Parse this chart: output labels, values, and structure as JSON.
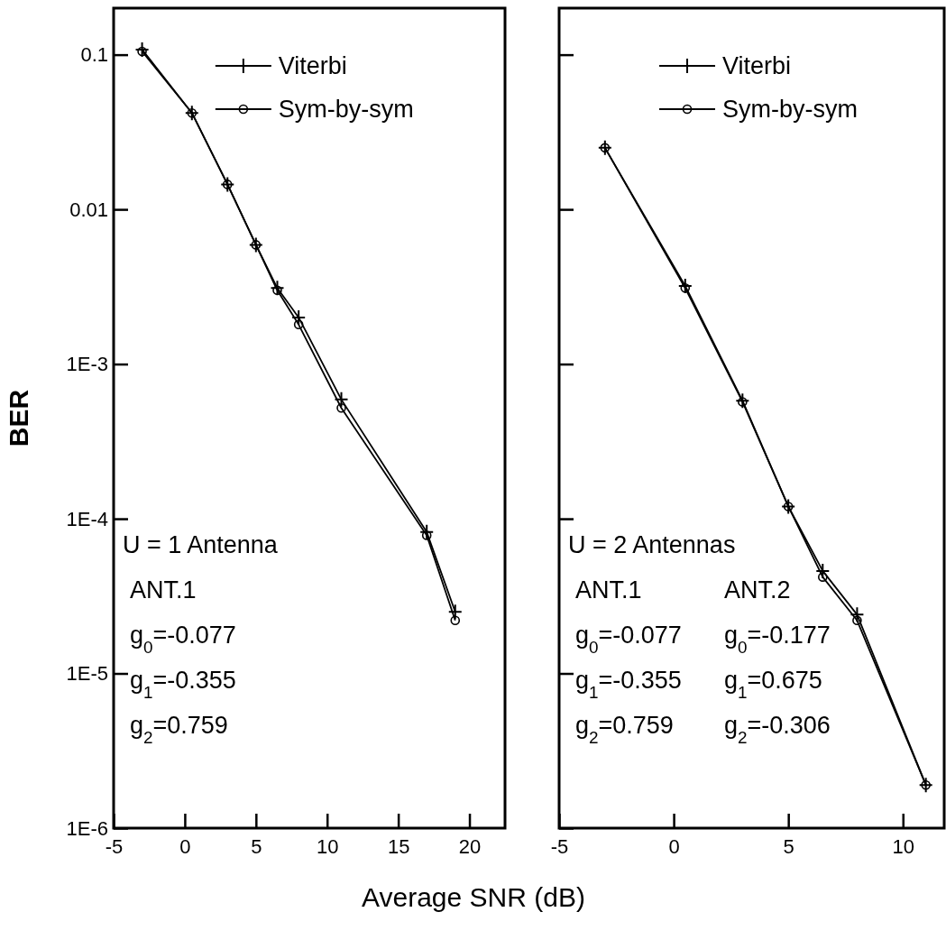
{
  "chart_data": [
    {
      "type": "line",
      "ylabel": "BER",
      "xlabel": "Average SNR (dB)",
      "log": "y",
      "legend": "top right",
      "grid": false,
      "xlim": [
        -5,
        22.5
      ],
      "xticks": [
        -5,
        0,
        5,
        10,
        15,
        20
      ],
      "ylim": [
        1e-06,
        0.2
      ],
      "yticks": [
        {
          "value": 0.1,
          "label": "0.1"
        },
        {
          "value": 0.01,
          "label": "0.01"
        },
        {
          "value": 0.001,
          "label": "1E-3"
        },
        {
          "value": 0.0001,
          "label": "1E-4"
        },
        {
          "value": 1e-05,
          "label": "1E-5"
        },
        {
          "value": 1e-06,
          "label": "1E-6"
        }
      ],
      "x": [
        -3,
        0.5,
        3,
        5,
        6.5,
        8,
        11,
        17,
        19
      ],
      "series": [
        {
          "name": "Viterbi",
          "color": "#000000",
          "marker": "cross",
          "values": [
            0.108,
            0.042,
            0.0145,
            0.0059,
            0.0031,
            0.002,
            0.00059,
            8.2e-05,
            2.5e-05
          ]
        },
        {
          "name": "Sym-by-sym",
          "color": "#000000",
          "marker": "circle",
          "values": [
            0.105,
            0.042,
            0.0145,
            0.0059,
            0.003,
            0.0018,
            0.00052,
            7.8e-05,
            2.2e-05
          ]
        }
      ],
      "annotations": [
        "U = 1 Antenna",
        "ANT.1",
        "g$_{0}$=-0.077",
        "g$_{1}$=-0.355",
        "g$_{2}$=0.759"
      ]
    },
    {
      "type": "line",
      "log": "y",
      "legend": "top right",
      "grid": false,
      "tick_labels": "x",
      "xlim": [
        -5,
        11.8
      ],
      "xticks": [
        -5,
        0,
        5,
        10
      ],
      "ylim": [
        1e-06,
        0.2
      ],
      "yticks": [
        {
          "value": 0.1,
          "label": null
        },
        {
          "value": 0.01,
          "label": null
        },
        {
          "value": 0.001,
          "label": null
        },
        {
          "value": 0.0001,
          "label": null
        },
        {
          "value": 1e-05,
          "label": null
        },
        {
          "value": 1e-06,
          "label": null
        }
      ],
      "x": [
        -3,
        0.5,
        3,
        5,
        6.5,
        8,
        11
      ],
      "series": [
        {
          "name": "Viterbi",
          "color": "#000000",
          "marker": "cross",
          "values": [
            0.025,
            0.0032,
            0.00058,
            0.00012,
            4.6e-05,
            2.4e-05,
            1.9e-06
          ]
        },
        {
          "name": "Sym-by-sym",
          "color": "#000000",
          "marker": "circle",
          "values": [
            0.025,
            0.0031,
            0.00057,
            0.00012,
            4.2e-05,
            2.2e-05,
            1.9e-06
          ]
        }
      ],
      "annotations": [
        "U = 2 Antennas",
        "ANT.1",
        "ANT.2",
        "g$_{0}$=-0.077",
        "g$_{0}$=-0.177",
        "g$_{1}$=-0.355",
        "g$_{1}$=0.675",
        "g$_{2}$=0.759",
        "g$_{2}$=-0.306"
      ]
    }
  ]
}
